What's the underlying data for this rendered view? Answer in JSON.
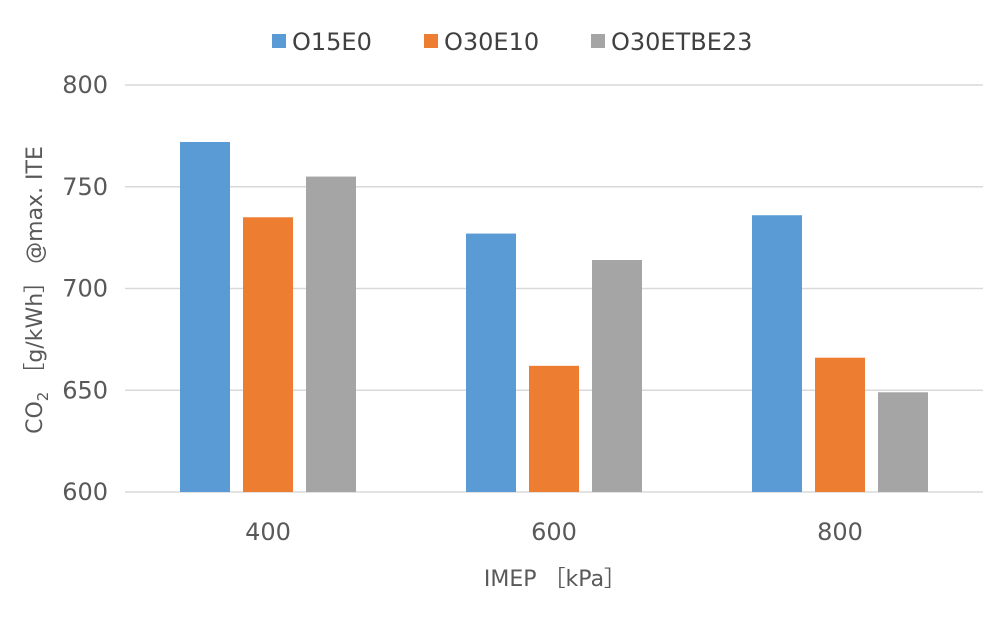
{
  "chart_data": {
    "type": "bar",
    "categories": [
      "400",
      "600",
      "800"
    ],
    "series": [
      {
        "name": "O15E0",
        "color": "#5b9bd5",
        "values": [
          772,
          727,
          736
        ]
      },
      {
        "name": "O30E10",
        "color": "#ed7d31",
        "values": [
          735,
          662,
          666
        ]
      },
      {
        "name": "O30ETBE23",
        "color": "#a5a5a5",
        "values": [
          755,
          714,
          649
        ]
      }
    ],
    "xlabel": "IMEP ［kPa］",
    "ylabel": {
      "prefix": "CO",
      "subscript": "2",
      "suffix": " ［g/kWh］ @max. ITE"
    },
    "ylim": [
      600,
      800
    ],
    "yticks": [
      600,
      650,
      700,
      750,
      800
    ],
    "grid": true,
    "legend_position": "top"
  }
}
